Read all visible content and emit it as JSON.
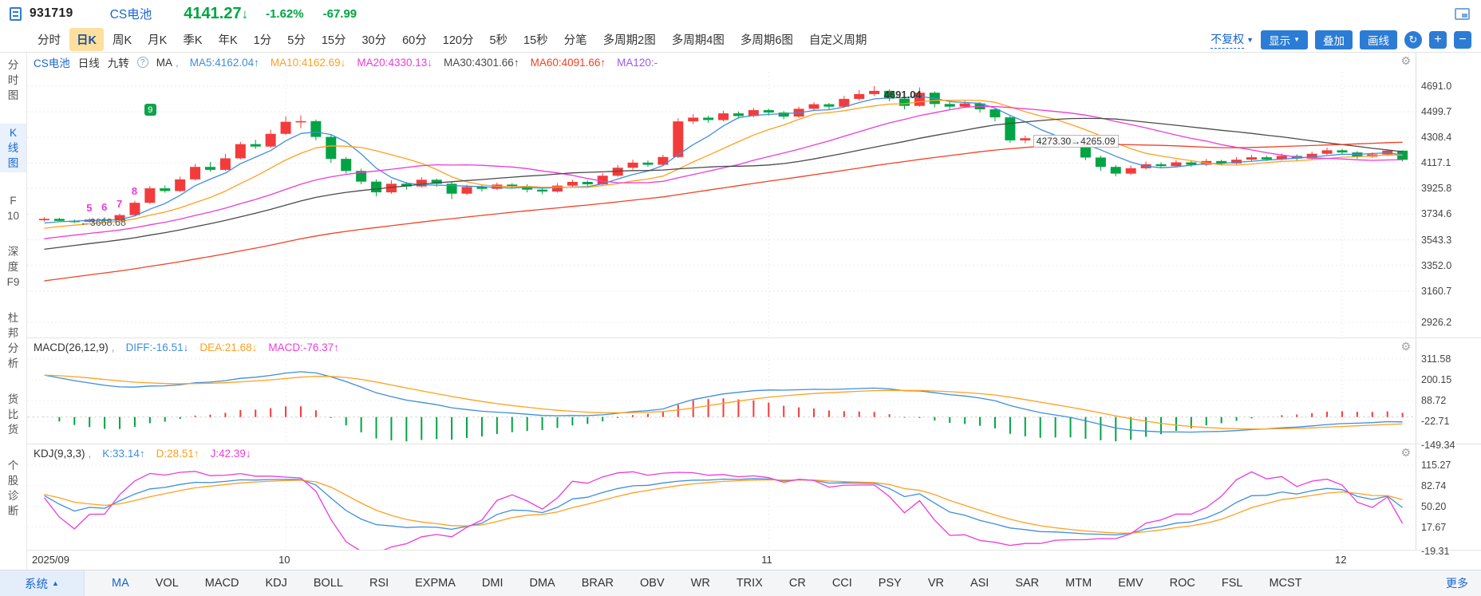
{
  "window": {
    "code": "931719",
    "name": "CS电池",
    "price": "4141.27",
    "arrow": "↓",
    "pct": "-1.62%",
    "chg": "-67.99"
  },
  "colors": {
    "up": "#f43b3b",
    "down": "#00a443",
    "accent_blue": "#2c7cd6",
    "link_blue": "#1a66cc",
    "ma5": "#3e8edd",
    "ma10": "#ffa01e",
    "ma20": "#ec3bda",
    "ma30": "#4a4a4a",
    "ma60": "#f04124",
    "ma120": "#9b59ec"
  },
  "period_tabs": [
    "分时",
    "日K",
    "周K",
    "月K",
    "季K",
    "年K",
    "1分",
    "5分",
    "15分",
    "30分",
    "60分",
    "120分",
    "5秒",
    "15秒",
    "分笔",
    "多周期2图",
    "多周期4图",
    "多周期6图",
    "自定义周期"
  ],
  "period_selected": "日K",
  "right_controls": {
    "adjust": "不复权",
    "display": "显示",
    "overlay": "叠加",
    "draw": "画线",
    "refresh_icon": "↻",
    "zoom_in": "+",
    "zoom_out": "−"
  },
  "sidebar": {
    "items": [
      {
        "label": "分时图",
        "lines": [
          "分",
          "时",
          "图"
        ],
        "selected": false
      },
      {
        "label": "K线图",
        "lines": [
          "K",
          "线",
          "图"
        ],
        "selected": true
      },
      {
        "label": "F10",
        "lines": [
          "F",
          "10"
        ],
        "selected": false
      },
      {
        "label": "深度F9",
        "lines": [
          "深",
          "度",
          "F9"
        ],
        "selected": false
      },
      {
        "label": "杜邦分析",
        "lines": [
          "杜",
          "邦",
          "分",
          "析"
        ],
        "selected": false
      },
      {
        "label": "货比货",
        "lines": [
          "货",
          "比",
          "货"
        ],
        "selected": false
      },
      {
        "label": "个股诊断",
        "lines": [
          "个",
          "股",
          "诊",
          "断"
        ],
        "selected": false
      }
    ]
  },
  "main_header": {
    "symbol": "CS电池",
    "period_label": "日线",
    "nine_label": "九转",
    "help_icon": "?",
    "ma_group_label": "MA",
    "separator": ",",
    "ma_items": [
      {
        "text": "MA5:4162.04↑",
        "color": "#3e8edd"
      },
      {
        "text": "MA10:4162.69↓",
        "color": "#ffa01e"
      },
      {
        "text": "MA20:4330.13↓",
        "color": "#ec3bda"
      },
      {
        "text": "MA30:4301.66↑",
        "color": "#4a4a4a"
      },
      {
        "text": "MA60:4091.66↑",
        "color": "#f04124"
      },
      {
        "text": "MA120:-",
        "color": "#9b59ec"
      }
    ]
  },
  "macd_header": {
    "title": "MACD(26,12,9)",
    "separator": ",",
    "items": [
      {
        "text": "DIFF:-16.51↓",
        "color": "#3e8edd"
      },
      {
        "text": "DEA:21.68↓",
        "color": "#ffa01e"
      },
      {
        "text": "MACD:-76.37↑",
        "color": "#ec3bda"
      }
    ]
  },
  "kdj_header": {
    "title": "KDJ(9,3,3)",
    "separator": ",",
    "items": [
      {
        "text": "K:33.14↑",
        "color": "#3e8edd"
      },
      {
        "text": "D:28.51↑",
        "color": "#ffa01e"
      },
      {
        "text": "J:42.39↓",
        "color": "#ec3bda"
      }
    ]
  },
  "axes": {
    "main_labels": [
      "4691.0",
      "4499.7",
      "4308.4",
      "4117.1",
      "3925.8",
      "3734.6",
      "3543.3",
      "3352.0",
      "3160.7",
      "2926.2"
    ],
    "macd_labels": [
      "311.58",
      "200.15",
      "88.72",
      "-22.71",
      "-149.34"
    ],
    "kdj_labels": [
      "115.27",
      "82.74",
      "50.20",
      "17.67",
      "-19.31"
    ]
  },
  "bottom_bar": {
    "system": "系统",
    "system_caret": "▲",
    "more": "更多",
    "selected": "MA",
    "indicators": [
      "MA",
      "VOL",
      "MACD",
      "KDJ",
      "BOLL",
      "RSI",
      "EXPMA",
      "DMI",
      "DMA",
      "BRAR",
      "OBV",
      "WR",
      "TRIX",
      "CR",
      "CCI",
      "PSY",
      "VR",
      "ASI",
      "SAR",
      "MTM",
      "EMV",
      "ROC",
      "FSL",
      "MCST"
    ]
  },
  "chart_data": {
    "type": "candlestick",
    "symbol": "CS电池",
    "period": "日线",
    "last_close": 4141.27,
    "prev_close": 4209.26,
    "change_pct": -1.62,
    "change_abs": -67.99,
    "y_axis": [
      4691.0,
      4499.7,
      4308.4,
      4117.1,
      3925.8,
      3734.6,
      3543.3,
      3352.0,
      3160.7,
      2926.2
    ],
    "macd_axis": [
      311.58,
      200.15,
      88.72,
      -22.71,
      -149.34
    ],
    "kdj_axis": [
      115.27,
      82.74,
      50.2,
      17.67,
      -19.31
    ],
    "x_ticks": [
      {
        "label": "2025/09",
        "index": 0
      },
      {
        "label": "10",
        "index": 16
      },
      {
        "label": "11",
        "index": 48
      },
      {
        "label": "12",
        "index": 86
      }
    ],
    "annotations": {
      "low": {
        "index": 2,
        "price": 3668.68,
        "text": "←3668.68"
      },
      "high": {
        "index": 55,
        "price": 4691.04,
        "text": "4691.04"
      },
      "gap": {
        "index": 65,
        "price": 4273.3,
        "text": "4273.30→4265.09"
      },
      "nine_numbers": [
        {
          "label": "5",
          "index": 3
        },
        {
          "label": "6",
          "index": 4
        },
        {
          "label": "7",
          "index": 5
        },
        {
          "label": "8",
          "index": 6
        }
      ],
      "nine_badge": {
        "label": "9",
        "index": 7
      }
    },
    "indicators": {
      "ma": {
        "MA5": 4162.04,
        "MA10": 4162.69,
        "MA20": 4330.13,
        "MA30": 4301.66,
        "MA60": 4091.66,
        "MA120": null
      },
      "macd": {
        "params": [
          26,
          12,
          9
        ],
        "DIFF": -16.51,
        "DEA": 21.68,
        "MACD": -76.37
      },
      "kdj": {
        "params": [
          9,
          3,
          3
        ],
        "K": 33.14,
        "D": 28.51,
        "J": 42.39
      }
    },
    "ohlc": [
      [
        3690,
        3712,
        3680,
        3700
      ],
      [
        3700,
        3708,
        3675,
        3685
      ],
      [
        3685,
        3695,
        3668.68,
        3678
      ],
      [
        3678,
        3705,
        3672,
        3695
      ],
      [
        3695,
        3712,
        3680,
        3688
      ],
      [
        3688,
        3740,
        3682,
        3728
      ],
      [
        3728,
        3835,
        3720,
        3820
      ],
      [
        3820,
        3945,
        3812,
        3928
      ],
      [
        3928,
        3950,
        3895,
        3908
      ],
      [
        3908,
        4015,
        3900,
        3995
      ],
      [
        3995,
        4110,
        3988,
        4088
      ],
      [
        4088,
        4125,
        4052,
        4066
      ],
      [
        4066,
        4185,
        4060,
        4152
      ],
      [
        4152,
        4275,
        4145,
        4258
      ],
      [
        4258,
        4290,
        4222,
        4240
      ],
      [
        4240,
        4365,
        4232,
        4335
      ],
      [
        4335,
        4465,
        4325,
        4425
      ],
      [
        4425,
        4472,
        4378,
        4430
      ],
      [
        4430,
        4442,
        4288,
        4312
      ],
      [
        4312,
        4330,
        4118,
        4148
      ],
      [
        4148,
        4162,
        4038,
        4058
      ],
      [
        4058,
        4075,
        3958,
        3978
      ],
      [
        3978,
        3995,
        3868,
        3898
      ],
      [
        3898,
        3988,
        3888,
        3962
      ],
      [
        3962,
        3975,
        3918,
        3942
      ],
      [
        3942,
        4012,
        3935,
        3992
      ],
      [
        3992,
        4000,
        3938,
        3962
      ],
      [
        3962,
        3975,
        3848,
        3888
      ],
      [
        3888,
        3955,
        3878,
        3938
      ],
      [
        3938,
        3952,
        3904,
        3924
      ],
      [
        3924,
        3972,
        3915,
        3956
      ],
      [
        3956,
        3968,
        3928,
        3944
      ],
      [
        3944,
        3958,
        3898,
        3918
      ],
      [
        3918,
        3936,
        3884,
        3904
      ],
      [
        3904,
        3966,
        3896,
        3948
      ],
      [
        3948,
        3992,
        3940,
        3976
      ],
      [
        3976,
        3986,
        3944,
        3958
      ],
      [
        3958,
        4042,
        3952,
        4022
      ],
      [
        4022,
        4102,
        4015,
        4082
      ],
      [
        4082,
        4142,
        4068,
        4120
      ],
      [
        4120,
        4136,
        4088,
        4104
      ],
      [
        4104,
        4178,
        4098,
        4162
      ],
      [
        4162,
        4452,
        4155,
        4428
      ],
      [
        4428,
        4482,
        4408,
        4456
      ],
      [
        4456,
        4470,
        4418,
        4438
      ],
      [
        4438,
        4508,
        4428,
        4488
      ],
      [
        4488,
        4502,
        4448,
        4468
      ],
      [
        4468,
        4528,
        4458,
        4512
      ],
      [
        4512,
        4522,
        4472,
        4494
      ],
      [
        4494,
        4506,
        4444,
        4464
      ],
      [
        4464,
        4538,
        4454,
        4522
      ],
      [
        4522,
        4572,
        4510,
        4556
      ],
      [
        4556,
        4566,
        4518,
        4538
      ],
      [
        4538,
        4618,
        4532,
        4596
      ],
      [
        4596,
        4662,
        4584,
        4632
      ],
      [
        4632,
        4691.04,
        4618,
        4656
      ],
      [
        4656,
        4668,
        4578,
        4598
      ],
      [
        4598,
        4612,
        4518,
        4544
      ],
      [
        4544,
        4682,
        4538,
        4642
      ],
      [
        4642,
        4652,
        4532,
        4558
      ],
      [
        4558,
        4576,
        4514,
        4538
      ],
      [
        4538,
        4582,
        4528,
        4562
      ],
      [
        4562,
        4572,
        4494,
        4518
      ],
      [
        4518,
        4532,
        4428,
        4458
      ],
      [
        4458,
        4470,
        4268,
        4286
      ],
      [
        4286,
        4322,
        4265.09,
        4302
      ],
      [
        4302,
        4312,
        4258,
        4278
      ],
      [
        4278,
        4314,
        4268,
        4296
      ],
      [
        4296,
        4302,
        4238,
        4258
      ],
      [
        4258,
        4272,
        4138,
        4158
      ],
      [
        4158,
        4172,
        4058,
        4088
      ],
      [
        4088,
        4102,
        4018,
        4038
      ],
      [
        4038,
        4098,
        4028,
        4078
      ],
      [
        4078,
        4128,
        4068,
        4108
      ],
      [
        4108,
        4122,
        4078,
        4094
      ],
      [
        4094,
        4138,
        4084,
        4122
      ],
      [
        4122,
        4132,
        4088,
        4104
      ],
      [
        4104,
        4148,
        4094,
        4132
      ],
      [
        4132,
        4142,
        4098,
        4114
      ],
      [
        4114,
        4162,
        4108,
        4142
      ],
      [
        4142,
        4178,
        4128,
        4160
      ],
      [
        4160,
        4172,
        4132,
        4144
      ],
      [
        4144,
        4188,
        4138,
        4170
      ],
      [
        4170,
        4182,
        4136,
        4150
      ],
      [
        4150,
        4202,
        4144,
        4186
      ],
      [
        4186,
        4232,
        4178,
        4212
      ],
      [
        4212,
        4222,
        4182,
        4196
      ],
      [
        4196,
        4206,
        4148,
        4164
      ],
      [
        4164,
        4196,
        4156,
        4182
      ],
      [
        4182,
        4216,
        4170,
        4209.26
      ],
      [
        4209.26,
        4212,
        4128,
        4141.27
      ]
    ]
  }
}
